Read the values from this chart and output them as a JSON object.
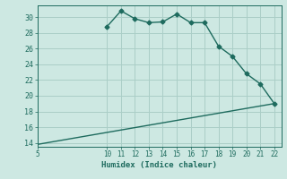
{
  "xlabel": "Humidex (Indice chaleur)",
  "bg_color": "#cde8e2",
  "grid_color": "#aacec7",
  "line_color": "#1e6b5e",
  "x_humidex": [
    10,
    11,
    12,
    13,
    14,
    15,
    16,
    17,
    18,
    19,
    20,
    21,
    22
  ],
  "y_humidex": [
    28.8,
    30.8,
    29.8,
    29.3,
    29.4,
    30.4,
    29.3,
    29.3,
    26.3,
    25.0,
    22.8,
    21.5,
    19.0
  ],
  "x_ref_start": 5,
  "y_ref_start": 13.8,
  "x_ref_end": 22,
  "y_ref_end": 19.0,
  "ylim": [
    13.5,
    31.5
  ],
  "xlim": [
    5,
    22.5
  ],
  "yticks": [
    14,
    16,
    18,
    20,
    22,
    24,
    26,
    28,
    30
  ],
  "xticks": [
    5,
    10,
    11,
    12,
    13,
    14,
    15,
    16,
    17,
    18,
    19,
    20,
    21,
    22
  ]
}
